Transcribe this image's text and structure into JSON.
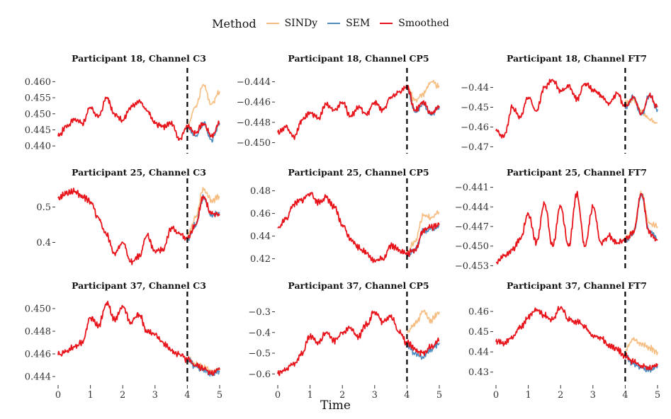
{
  "legend": {
    "title": "Method",
    "items": [
      {
        "label": "SINDy",
        "color": "#F7BD80"
      },
      {
        "label": "SEM",
        "color": "#4C8CC0"
      },
      {
        "label": "Smoothed",
        "color": "#E8141B"
      }
    ]
  },
  "x_label": "Time",
  "chart_data": [
    {
      "type": "line",
      "title": "Participant 18, Channel C3",
      "xlabel": "Time",
      "xlim": [
        0,
        5
      ],
      "xticks": [
        0,
        1,
        2,
        3,
        4,
        5
      ],
      "ylim": [
        0.4385,
        0.4625
      ],
      "yticks": [
        0.44,
        0.445,
        0.45,
        0.455,
        0.46
      ],
      "ytick_labels": [
        "0.440",
        "0.445",
        "0.450",
        "0.455",
        "0.460"
      ],
      "cutoff": 4,
      "series": [
        {
          "name": "Smoothed",
          "x": [
            0,
            0.25,
            0.5,
            0.75,
            1.0,
            1.25,
            1.5,
            1.75,
            2.0,
            2.25,
            2.5,
            2.75,
            3.0,
            3.25,
            3.5,
            3.75,
            4.0,
            4.25,
            4.5,
            4.75,
            5.0
          ],
          "values": [
            0.443,
            0.446,
            0.448,
            0.447,
            0.452,
            0.449,
            0.455,
            0.45,
            0.448,
            0.452,
            0.454,
            0.451,
            0.447,
            0.446,
            0.447,
            0.442,
            0.446,
            0.444,
            0.447,
            0.443,
            0.447
          ]
        },
        {
          "name": "SEM",
          "x": [
            4.0,
            4.25,
            4.5,
            4.75,
            5.0
          ],
          "values": [
            0.446,
            0.443,
            0.447,
            0.442,
            0.447
          ]
        },
        {
          "name": "SINDy",
          "x": [
            4.0,
            4.25,
            4.5,
            4.75,
            5.0
          ],
          "values": [
            0.446,
            0.452,
            0.459,
            0.453,
            0.457
          ]
        }
      ]
    },
    {
      "type": "line",
      "title": "Participant 18, Channel CP5",
      "xlabel": "Time",
      "xlim": [
        0,
        5
      ],
      "xticks": [
        0,
        1,
        2,
        3,
        4,
        5
      ],
      "ylim": [
        -0.4508,
        -0.4432
      ],
      "yticks": [
        -0.45,
        -0.448,
        -0.446,
        -0.444
      ],
      "ytick_labels": [
        "−0.450",
        "−0.448",
        "−0.446",
        "−0.444"
      ],
      "cutoff": 4,
      "series": [
        {
          "name": "Smoothed",
          "x": [
            0,
            0.25,
            0.5,
            0.75,
            1.0,
            1.25,
            1.5,
            1.75,
            2.0,
            2.25,
            2.5,
            2.75,
            3.0,
            3.25,
            3.5,
            3.75,
            4.0,
            4.25,
            4.5,
            4.75,
            5.0
          ],
          "values": [
            -0.449,
            -0.4485,
            -0.4495,
            -0.4478,
            -0.447,
            -0.4476,
            -0.4462,
            -0.4468,
            -0.446,
            -0.4474,
            -0.4465,
            -0.4472,
            -0.446,
            -0.4468,
            -0.4455,
            -0.445,
            -0.4445,
            -0.4468,
            -0.446,
            -0.4472,
            -0.4464
          ]
        },
        {
          "name": "SEM",
          "x": [
            4.0,
            4.25,
            4.5,
            4.75,
            5.0
          ],
          "values": [
            -0.4446,
            -0.447,
            -0.4462,
            -0.4473,
            -0.4465
          ]
        },
        {
          "name": "SINDy",
          "x": [
            4.0,
            4.25,
            4.5,
            4.75,
            5.0
          ],
          "values": [
            -0.4446,
            -0.4458,
            -0.4452,
            -0.444,
            -0.4445
          ]
        }
      ]
    },
    {
      "type": "line",
      "title": "Participant 18, Channel FT7",
      "xlabel": "Time",
      "xlim": [
        0,
        5
      ],
      "xticks": [
        0,
        1,
        2,
        3,
        4,
        5
      ],
      "ylim": [
        -0.472,
        -0.433
      ],
      "yticks": [
        -0.47,
        -0.46,
        -0.45,
        -0.44
      ],
      "ytick_labels": [
        "−0.47",
        "−0.46",
        "−0.45",
        "−0.44"
      ],
      "cutoff": 4,
      "series": [
        {
          "name": "Smoothed",
          "x": [
            0,
            0.25,
            0.5,
            0.75,
            1.0,
            1.25,
            1.5,
            1.75,
            2.0,
            2.25,
            2.5,
            2.75,
            3.0,
            3.25,
            3.5,
            3.75,
            4.0,
            4.25,
            4.5,
            4.75,
            5.0
          ],
          "values": [
            -0.462,
            -0.465,
            -0.45,
            -0.455,
            -0.445,
            -0.452,
            -0.44,
            -0.436,
            -0.442,
            -0.439,
            -0.446,
            -0.438,
            -0.441,
            -0.444,
            -0.448,
            -0.443,
            -0.45,
            -0.445,
            -0.453,
            -0.444,
            -0.45
          ]
        },
        {
          "name": "SEM",
          "x": [
            4.0,
            4.25,
            4.5,
            4.75,
            5.0
          ],
          "values": [
            -0.451,
            -0.445,
            -0.454,
            -0.444,
            -0.451
          ]
        },
        {
          "name": "SINDy",
          "x": [
            4.0,
            4.25,
            4.5,
            4.75,
            5.0
          ],
          "values": [
            -0.448,
            -0.446,
            -0.452,
            -0.456,
            -0.458
          ]
        }
      ]
    },
    {
      "type": "line",
      "title": "Participant 25, Channel C3",
      "xlabel": "Time",
      "xlim": [
        0,
        5
      ],
      "xticks": [
        0,
        1,
        2,
        3,
        4,
        5
      ],
      "ylim": [
        0.325,
        0.565
      ],
      "yticks": [
        0.4,
        0.5
      ],
      "ytick_labels": [
        "0.4",
        "0.5"
      ],
      "cutoff": 4,
      "series": [
        {
          "name": "Smoothed",
          "x": [
            0,
            0.25,
            0.5,
            0.75,
            1.0,
            1.25,
            1.5,
            1.75,
            2.0,
            2.25,
            2.5,
            2.75,
            3.0,
            3.25,
            3.5,
            3.75,
            4.0,
            4.25,
            4.5,
            4.75,
            5.0
          ],
          "values": [
            0.525,
            0.54,
            0.543,
            0.53,
            0.515,
            0.47,
            0.42,
            0.37,
            0.4,
            0.345,
            0.36,
            0.42,
            0.375,
            0.38,
            0.44,
            0.425,
            0.41,
            0.45,
            0.53,
            0.48,
            0.48
          ]
        },
        {
          "name": "SEM",
          "x": [
            4.0,
            4.25,
            4.5,
            4.75,
            5.0
          ],
          "values": [
            0.41,
            0.448,
            0.528,
            0.478,
            0.482
          ]
        },
        {
          "name": "SINDy",
          "x": [
            4.0,
            4.25,
            4.5,
            4.75,
            5.0
          ],
          "values": [
            0.42,
            0.47,
            0.55,
            0.52,
            0.53
          ]
        }
      ]
    },
    {
      "type": "line",
      "title": "Participant 25, Channel CP5",
      "xlabel": "Time",
      "xlim": [
        0,
        5
      ],
      "xticks": [
        0,
        1,
        2,
        3,
        4,
        5
      ],
      "ylim": [
        0.411,
        0.486
      ],
      "yticks": [
        0.42,
        0.44,
        0.46,
        0.48
      ],
      "ytick_labels": [
        "0.42",
        "0.44",
        "0.46",
        "0.48"
      ],
      "cutoff": 4,
      "series": [
        {
          "name": "Smoothed",
          "x": [
            0,
            0.25,
            0.5,
            0.75,
            1.0,
            1.25,
            1.5,
            1.75,
            2.0,
            2.25,
            2.5,
            2.75,
            3.0,
            3.25,
            3.5,
            3.75,
            4.0,
            4.25,
            4.5,
            4.75,
            5.0
          ],
          "values": [
            0.447,
            0.455,
            0.468,
            0.472,
            0.478,
            0.47,
            0.474,
            0.465,
            0.45,
            0.438,
            0.43,
            0.425,
            0.418,
            0.42,
            0.432,
            0.428,
            0.424,
            0.428,
            0.445,
            0.448,
            0.45
          ]
        },
        {
          "name": "SEM",
          "x": [
            4.0,
            4.25,
            4.5,
            4.75,
            5.0
          ],
          "values": [
            0.424,
            0.427,
            0.444,
            0.447,
            0.449
          ]
        },
        {
          "name": "SINDy",
          "x": [
            4.0,
            4.25,
            4.5,
            4.75,
            5.0
          ],
          "values": [
            0.426,
            0.435,
            0.458,
            0.456,
            0.461
          ]
        }
      ]
    },
    {
      "type": "line",
      "title": "Participant 25, Channel FT7",
      "xlabel": "Time",
      "xlim": [
        0,
        5
      ],
      "xticks": [
        0,
        1,
        2,
        3,
        4,
        5
      ],
      "ylim": [
        -0.4535,
        -0.4405
      ],
      "yticks": [
        -0.453,
        -0.45,
        -0.447,
        -0.444,
        -0.441
      ],
      "ytick_labels": [
        "−0.453",
        "−0.450",
        "−0.447",
        "−0.444",
        "−0.441"
      ],
      "cutoff": 4,
      "series": [
        {
          "name": "Smoothed",
          "x": [
            0,
            0.25,
            0.5,
            0.75,
            1.0,
            1.25,
            1.5,
            1.75,
            2.0,
            2.25,
            2.5,
            2.75,
            3.0,
            3.25,
            3.5,
            3.75,
            4.0,
            4.25,
            4.5,
            4.75,
            5.0
          ],
          "values": [
            -0.4525,
            -0.4515,
            -0.4505,
            -0.449,
            -0.445,
            -0.4495,
            -0.4435,
            -0.45,
            -0.444,
            -0.45,
            -0.442,
            -0.45,
            -0.444,
            -0.4495,
            -0.4485,
            -0.4495,
            -0.449,
            -0.448,
            -0.442,
            -0.448,
            -0.449
          ]
        },
        {
          "name": "SEM",
          "x": [
            4.0,
            4.25,
            4.5,
            4.75,
            5.0
          ],
          "values": [
            -0.449,
            -0.4482,
            -0.4422,
            -0.4478,
            -0.449
          ]
        },
        {
          "name": "SINDy",
          "x": [
            4.0,
            4.25,
            4.5,
            4.75,
            5.0
          ],
          "values": [
            -0.4488,
            -0.4478,
            -0.442,
            -0.4465,
            -0.447
          ]
        }
      ]
    },
    {
      "type": "line",
      "title": "Participant 37, Channel C3",
      "xlabel": "Time",
      "xlim": [
        0,
        5
      ],
      "xticks": [
        0,
        1,
        2,
        3,
        4,
        5
      ],
      "ylim": [
        0.4435,
        0.451
      ],
      "yticks": [
        0.444,
        0.446,
        0.448,
        0.45
      ],
      "ytick_labels": [
        "0.444",
        "0.446",
        "0.448",
        "0.450"
      ],
      "cutoff": 4,
      "series": [
        {
          "name": "Smoothed",
          "x": [
            0,
            0.25,
            0.5,
            0.75,
            1.0,
            1.25,
            1.5,
            1.75,
            2.0,
            2.25,
            2.5,
            2.75,
            3.0,
            3.25,
            3.5,
            3.75,
            4.0,
            4.25,
            4.5,
            4.75,
            5.0
          ],
          "values": [
            0.4459,
            0.4462,
            0.4466,
            0.447,
            0.4492,
            0.4485,
            0.4505,
            0.449,
            0.4502,
            0.4488,
            0.4495,
            0.448,
            0.4477,
            0.447,
            0.4463,
            0.446,
            0.4455,
            0.445,
            0.4447,
            0.4443,
            0.4446
          ]
        },
        {
          "name": "SEM",
          "x": [
            4.0,
            4.25,
            4.5,
            4.75,
            5.0
          ],
          "values": [
            0.4455,
            0.4449,
            0.4446,
            0.4442,
            0.4445
          ]
        },
        {
          "name": "SINDy",
          "x": [
            4.0,
            4.25,
            4.5,
            4.75,
            5.0
          ],
          "values": [
            0.4456,
            0.4451,
            0.4448,
            0.4445,
            0.4447
          ]
        }
      ]
    },
    {
      "type": "line",
      "title": "Participant 37, Channel CP5",
      "xlabel": "Time",
      "xlim": [
        0,
        5
      ],
      "xticks": [
        0,
        1,
        2,
        3,
        4,
        5
      ],
      "ylim": [
        -0.64,
        -0.23
      ],
      "yticks": [
        -0.6,
        -0.5,
        -0.4,
        -0.3
      ],
      "ytick_labels": [
        "−0.6",
        "−0.5",
        "−0.4",
        "−0.3"
      ],
      "cutoff": 4,
      "series": [
        {
          "name": "Smoothed",
          "x": [
            0,
            0.25,
            0.5,
            0.75,
            1.0,
            1.25,
            1.5,
            1.75,
            2.0,
            2.25,
            2.5,
            2.75,
            3.0,
            3.25,
            3.5,
            3.75,
            4.0,
            4.25,
            4.5,
            4.75,
            5.0
          ],
          "values": [
            -0.6,
            -0.58,
            -0.55,
            -0.5,
            -0.42,
            -0.45,
            -0.4,
            -0.44,
            -0.4,
            -0.38,
            -0.42,
            -0.36,
            -0.3,
            -0.35,
            -0.32,
            -0.4,
            -0.45,
            -0.48,
            -0.5,
            -0.47,
            -0.44
          ]
        },
        {
          "name": "SEM",
          "x": [
            4.0,
            4.25,
            4.5,
            4.75,
            5.0
          ],
          "values": [
            -0.46,
            -0.5,
            -0.52,
            -0.48,
            -0.45
          ]
        },
        {
          "name": "SINDy",
          "x": [
            4.0,
            4.25,
            4.5,
            4.75,
            5.0
          ],
          "values": [
            -0.4,
            -0.36,
            -0.3,
            -0.34,
            -0.3
          ]
        }
      ]
    },
    {
      "type": "line",
      "title": "Participant 37, Channel FT7",
      "xlabel": "Time",
      "xlim": [
        0,
        5
      ],
      "xticks": [
        0,
        1,
        2,
        3,
        4,
        5
      ],
      "ylim": [
        0.425,
        0.467
      ],
      "yticks": [
        0.43,
        0.44,
        0.45,
        0.46
      ],
      "ytick_labels": [
        "0.43",
        "0.44",
        "0.45",
        "0.46"
      ],
      "cutoff": 4,
      "series": [
        {
          "name": "Smoothed",
          "x": [
            0,
            0.25,
            0.5,
            0.75,
            1.0,
            1.25,
            1.5,
            1.75,
            2.0,
            2.25,
            2.5,
            2.75,
            3.0,
            3.25,
            3.5,
            3.75,
            4.0,
            4.25,
            4.5,
            4.75,
            5.0
          ],
          "values": [
            0.445,
            0.444,
            0.447,
            0.452,
            0.457,
            0.461,
            0.458,
            0.456,
            0.462,
            0.456,
            0.455,
            0.452,
            0.448,
            0.447,
            0.443,
            0.441,
            0.438,
            0.435,
            0.433,
            0.432,
            0.434
          ]
        },
        {
          "name": "SEM",
          "x": [
            4.0,
            4.25,
            4.5,
            4.75,
            5.0
          ],
          "values": [
            0.438,
            0.434,
            0.432,
            0.431,
            0.433
          ]
        },
        {
          "name": "SINDy",
          "x": [
            4.0,
            4.25,
            4.5,
            4.75,
            5.0
          ],
          "values": [
            0.441,
            0.446,
            0.444,
            0.442,
            0.44
          ]
        }
      ]
    }
  ]
}
